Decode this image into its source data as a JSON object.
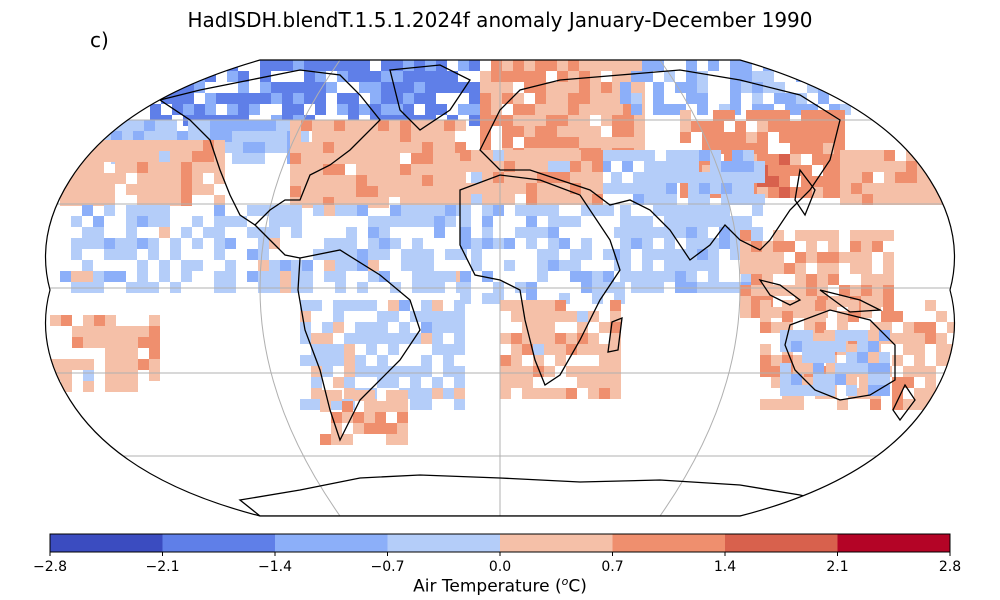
{
  "title": "HadISDH.blendT.1.5.1.2024f anomaly January-December 1990",
  "panel_label": "c)",
  "colorbar": {
    "label_prefix": "Air Temperature (",
    "label_sup": "o",
    "label_suffix": "C)",
    "ticks": [
      "−2.8",
      "−2.1",
      "−1.4",
      "−0.7",
      "0.0",
      "0.7",
      "1.4",
      "2.1",
      "2.8"
    ],
    "bins": [
      {
        "from": -2.8,
        "to": -2.1,
        "color": "#3b4cc0"
      },
      {
        "from": -2.1,
        "to": -1.4,
        "color": "#5f7fe8"
      },
      {
        "from": -1.4,
        "to": -0.7,
        "color": "#8caff9"
      },
      {
        "from": -0.7,
        "to": 0.0,
        "color": "#b4cdf9"
      },
      {
        "from": 0.0,
        "to": 0.7,
        "color": "#f5c0a8"
      },
      {
        "from": 0.7,
        "to": 1.4,
        "color": "#ef8f6e"
      },
      {
        "from": 1.4,
        "to": 2.1,
        "color": "#d8614d"
      },
      {
        "from": 2.1,
        "to": 2.8,
        "color": "#b40426"
      }
    ]
  },
  "map": {
    "projection": "Robinson",
    "gridlines": true,
    "coastlines": true,
    "anomaly_regions": [
      {
        "region": "Arctic Canada / Greenland",
        "value": -1.8
      },
      {
        "region": "Northern Canada",
        "value": -1.0
      },
      {
        "region": "Western North America",
        "value": -0.4
      },
      {
        "region": "Eastern United States",
        "value": 0.6
      },
      {
        "region": "Pacific NE",
        "value": 0.5
      },
      {
        "region": "North Atlantic",
        "value": -0.4
      },
      {
        "region": "Western Europe",
        "value": 0.6
      },
      {
        "region": "Scandinavia / NW Russia",
        "value": 0.4
      },
      {
        "region": "Central Siberia",
        "value": 1.0
      },
      {
        "region": "Far East Russia",
        "value": 0.6
      },
      {
        "region": "Central Asia",
        "value": -0.5
      },
      {
        "region": "Middle East",
        "value": 0.4
      },
      {
        "region": "North Africa",
        "value": -0.4
      },
      {
        "region": "Tropical Atlantic",
        "value": -0.4
      },
      {
        "region": "South America",
        "value": -0.3
      },
      {
        "region": "Southern Africa",
        "value": 0.4
      },
      {
        "region": "East Africa",
        "value": -0.6
      },
      {
        "region": "Indian Ocean",
        "value": -0.3
      },
      {
        "region": "Southeast Asia",
        "value": 0.4
      },
      {
        "region": "Australia",
        "value": -0.4
      },
      {
        "region": "Southwest Pacific",
        "value": 0.5
      },
      {
        "region": "New Zealand",
        "value": 0.4
      },
      {
        "region": "Patagonia",
        "value": 0.5
      },
      {
        "region": "Antarctic Peninsula",
        "value": -0.3
      }
    ]
  }
}
